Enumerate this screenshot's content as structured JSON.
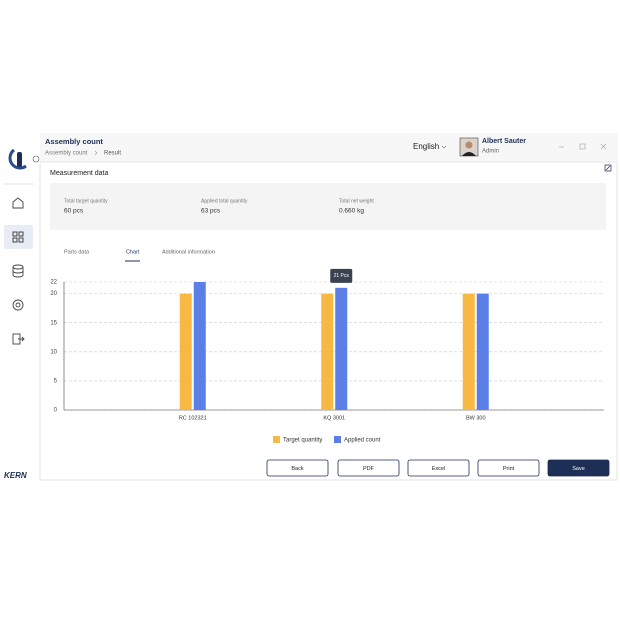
{
  "sidebar": {
    "logo": "KERN"
  },
  "header": {
    "title": "Assembly count",
    "breadcrumb": [
      "Assembly count",
      "Result"
    ],
    "language": "English",
    "user": {
      "name": "Albert Sauter",
      "role": "Admin"
    }
  },
  "panel": {
    "title": "Measurement data",
    "stats": [
      {
        "label": "Total target quantity",
        "value": "60 pcs"
      },
      {
        "label": "Applied total quantity",
        "value": "63 pcs"
      },
      {
        "label": "Total net weight",
        "value": "0.660 kg"
      }
    ],
    "tabs": [
      "Parts data",
      "Chart",
      "Additional information"
    ],
    "buttons": [
      "Back",
      "PDF",
      "Excel",
      "Print",
      "Save"
    ]
  },
  "chart_data": {
    "type": "bar",
    "categories": [
      "RC 102321",
      "KQ 3001",
      "BW 300"
    ],
    "series": [
      {
        "name": "Target quantity",
        "color": "#f7b944",
        "values": [
          20,
          20,
          20
        ]
      },
      {
        "name": "Applied count",
        "color": "#5b7fe6",
        "values": [
          22,
          21,
          20
        ],
        "value_labels": [
          null,
          "21 Pcs",
          null
        ]
      }
    ],
    "ylim": [
      0,
      22
    ],
    "yticks": [
      0,
      5,
      10,
      15,
      20,
      22
    ],
    "grid": true
  }
}
